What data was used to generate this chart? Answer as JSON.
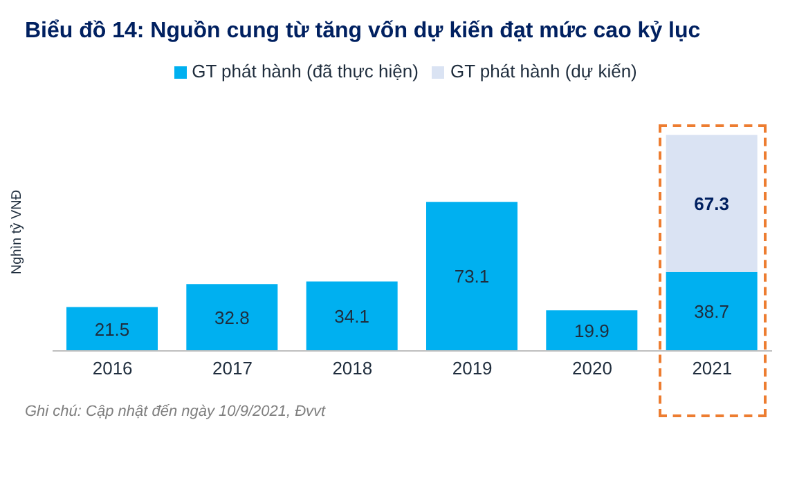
{
  "chart_data": {
    "type": "bar",
    "title": "Biểu đồ 14: Nguồn cung từ tăng vốn dự kiến đạt mức cao kỷ lục",
    "ylabel": "Nghìn tỷ VNĐ",
    "categories": [
      "2016",
      "2017",
      "2018",
      "2019",
      "2020",
      "2021"
    ],
    "stacked": true,
    "data_labels": true,
    "legend": "top",
    "series": [
      {
        "name": "GT phát hành (đã thực hiện)",
        "color": "#00b0f0",
        "values": [
          21.5,
          32.8,
          34.1,
          73.1,
          19.9,
          38.7
        ]
      },
      {
        "name": "GT phát hành (dự kiến)",
        "color": "#dae3f3",
        "values": [
          null,
          null,
          null,
          null,
          null,
          67.3
        ]
      }
    ],
    "annotations": [
      "Ghi chú: Cập nhật đến ngày 10/9/2021, Đvvt"
    ]
  }
}
